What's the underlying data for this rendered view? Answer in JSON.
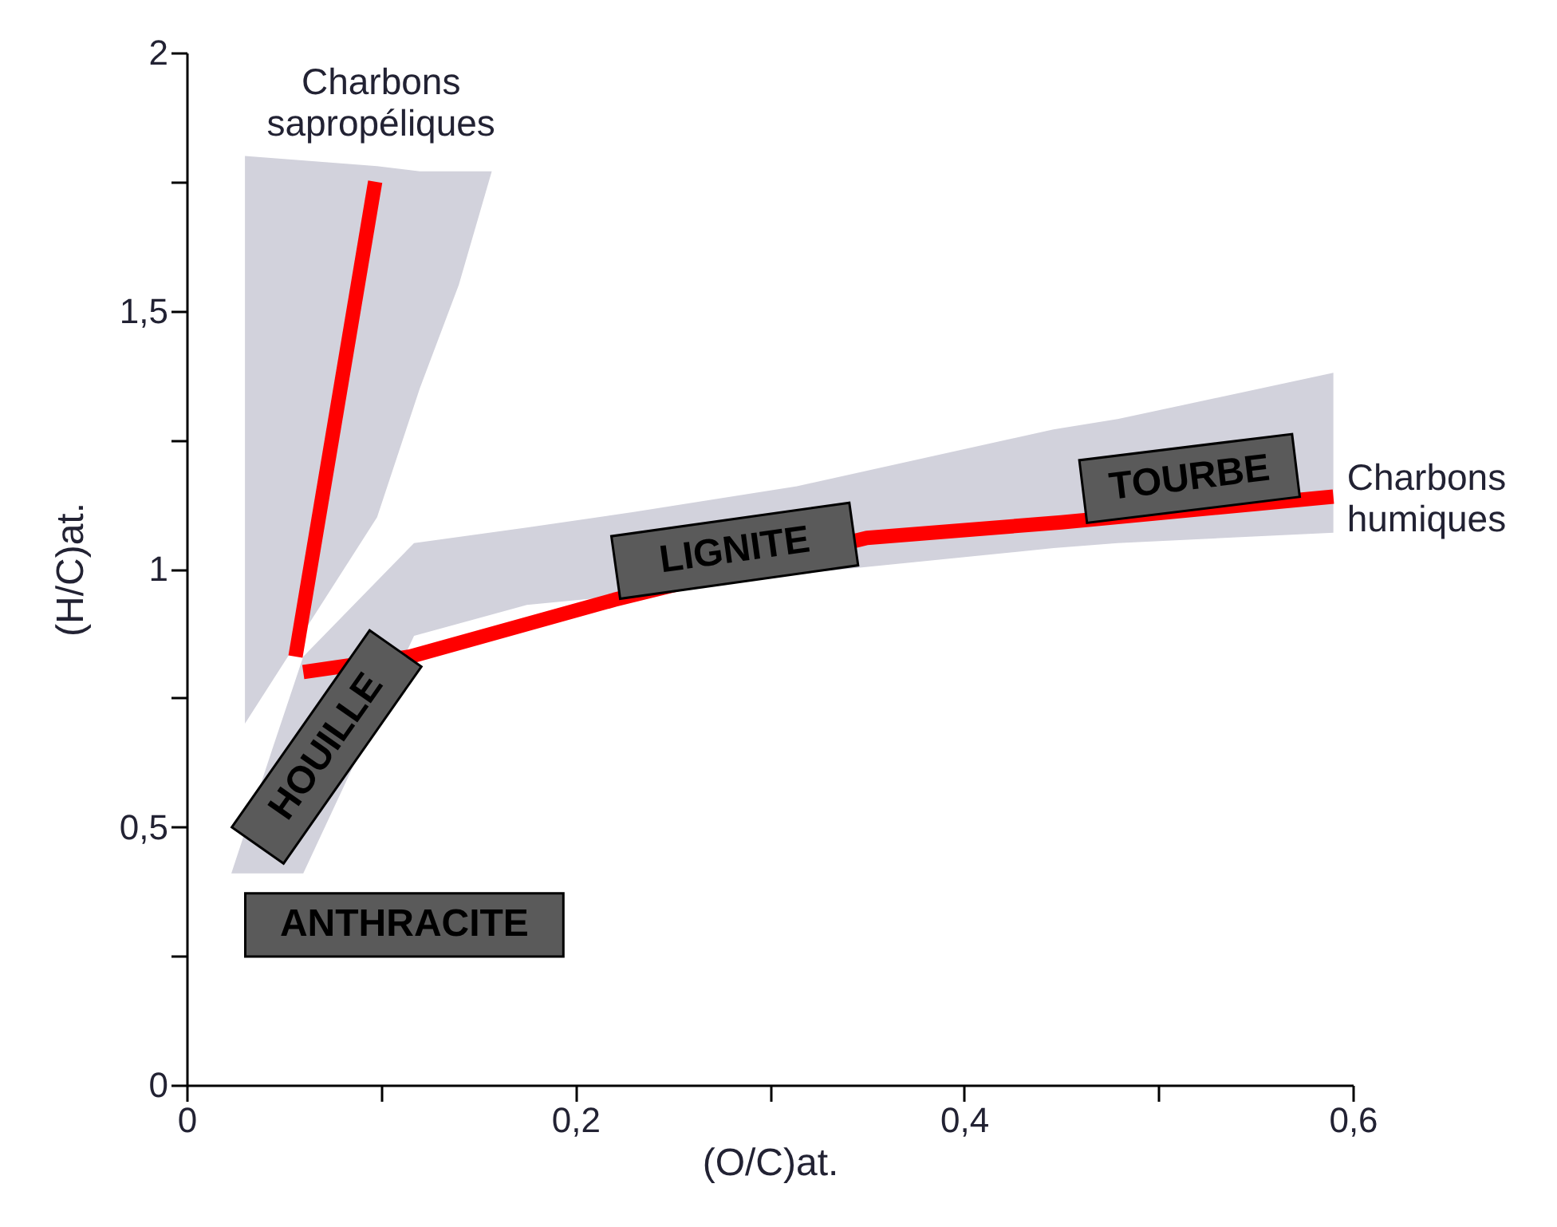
{
  "chart_data": {
    "type": "line",
    "xlabel": "(O/C)at.",
    "ylabel": "(H/C)at.",
    "xlim": [
      0,
      0.6
    ],
    "ylim": [
      0,
      2
    ],
    "xticks": [
      0,
      {
        "value": 0.1,
        "label": null
      },
      {
        "value": 0.2,
        "label": "0,2"
      },
      {
        "value": 0.3,
        "label": null
      },
      {
        "value": 0.4,
        "label": "0,4"
      },
      {
        "value": 0.5,
        "label": null
      },
      {
        "value": 0.6,
        "label": "0,6"
      }
    ],
    "yticks": [
      0,
      {
        "value": 0.25,
        "label": null
      },
      {
        "value": 0.5,
        "label": "0,5"
      },
      {
        "value": 0.75,
        "label": null
      },
      1,
      {
        "value": 1.25,
        "label": null
      },
      {
        "value": 1.5,
        "label": "1,5"
      },
      {
        "value": 1.75,
        "label": null
      },
      2
    ],
    "grid": false,
    "marker": "none",
    "line_style": "solid",
    "series": [
      {
        "type": "area",
        "color": "#d2d2dc",
        "x": [
          0.03,
          0.098,
          0.12,
          0.14,
          0.157
        ],
        "values": [
          null,
          null,
          null,
          null,
          null
        ],
        "upper": [
          1.8,
          1.78,
          1.77,
          1.77,
          1.77
        ],
        "lower": [
          0.7,
          1.1,
          1.35,
          1.55,
          1.77
        ]
      },
      {
        "type": "area",
        "color": "#d2d2dc",
        "x": [
          0.023,
          0.044,
          0.06,
          0.068,
          0.08,
          0.109,
          0.117,
          0.175,
          0.23,
          0.314,
          0.446,
          0.479,
          0.59
        ],
        "values": [
          null,
          null,
          null,
          null,
          null,
          null,
          null,
          null,
          null,
          null,
          null,
          null,
          null
        ],
        "upper": [
          0.41,
          0.65,
          0.83,
          null,
          null,
          null,
          1.05,
          1.08,
          1.11,
          1.16,
          1.27,
          1.29,
          1.38
        ],
        "lower": [
          0.41,
          0.41,
          0.41,
          null,
          null,
          null,
          0.87,
          0.93,
          0.95,
          0.99,
          1.04,
          1.05,
          1.07
        ]
      },
      {
        "color": "#ff0000",
        "x": [
          0.056,
          0.097
        ],
        "values": [
          0.83,
          1.75
        ]
      },
      {
        "color": "#ff0000",
        "x": [
          0.06,
          0.115,
          0.22,
          0.35,
          0.45,
          0.59
        ],
        "values": [
          0.8,
          0.83,
          0.94,
          1.06,
          1.09,
          1.14
        ]
      }
    ],
    "annotations": [
      "ANTHRACITE",
      "HOUILLE",
      "LIGNITE",
      "TOURBE",
      {
        "text": "Charbons sapropéliques",
        "x": 0.1,
        "y": 1.78
      },
      "Charbons humiques"
    ]
  }
}
